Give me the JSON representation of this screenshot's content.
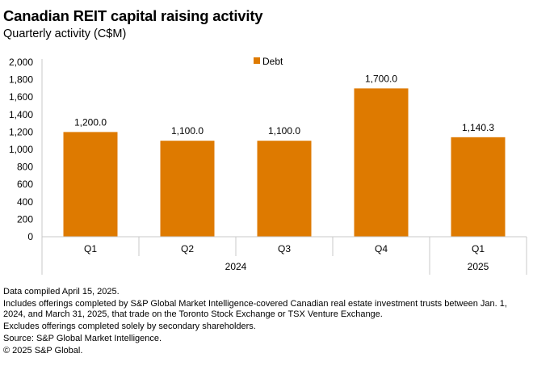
{
  "chart_data": {
    "type": "bar",
    "title": "Canadian REIT capital raising activity",
    "subtitle": "Quarterly activity (C$M)",
    "categories": [
      "Q1",
      "Q2",
      "Q3",
      "Q4",
      "Q1"
    ],
    "groups": [
      {
        "label": "2024",
        "categories": [
          "Q1",
          "Q2",
          "Q3",
          "Q4"
        ]
      },
      {
        "label": "2025",
        "categories": [
          "Q1"
        ]
      }
    ],
    "series": [
      {
        "name": "Debt",
        "color": "#DE7A00",
        "values": [
          1200.0,
          1100.0,
          1100.0,
          1700.0,
          1140.3
        ]
      }
    ],
    "data_labels": [
      "1,200.0",
      "1,100.0",
      "1,100.0",
      "1,700.0",
      "1,140.3"
    ],
    "yticks": [
      "0",
      "200",
      "400",
      "600",
      "800",
      "1,000",
      "1,200",
      "1,400",
      "1,600",
      "1,800",
      "2,000"
    ],
    "ylim": [
      0,
      2000
    ],
    "xlabel": "",
    "ylabel": "",
    "grid": false,
    "legend": "top-center"
  },
  "notes": [
    "Data compiled April 15, 2025.",
    "Includes offerings completed by S&P Global Market Intelligence-covered Canadian real estate investment trusts between Jan. 1, 2024, and March 31, 2025, that trade on the Toronto Stock Exchange or TSX Venture Exchange.",
    "Excludes offerings completed solely by secondary shareholders.",
    "Source: S&P Global Market Intelligence.",
    "© 2025 S&P Global."
  ]
}
